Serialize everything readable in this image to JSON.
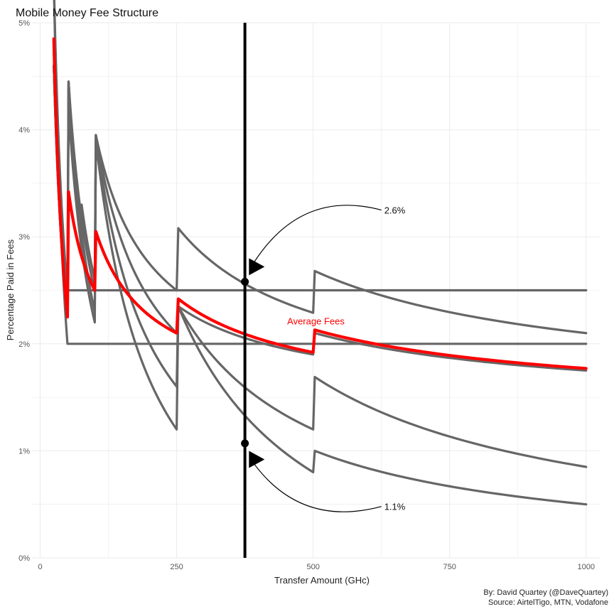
{
  "chart_data": {
    "type": "line",
    "title": "Mobile Money Fee Structure",
    "xlabel": "Transfer Amount (GHc)",
    "ylabel": "Percentage Paid in Fees",
    "xlim": [
      -15,
      1025
    ],
    "ylim": [
      0,
      5
    ],
    "x_ticks": [
      0,
      250,
      500,
      750,
      1000
    ],
    "x_tick_labels": [
      "0",
      "250",
      "500",
      "750",
      "1000"
    ],
    "y_ticks": [
      0,
      1,
      2,
      3,
      4,
      5
    ],
    "y_tick_labels": [
      "0%",
      "1%",
      "2%",
      "3%",
      "4%",
      "5%"
    ],
    "grid": true,
    "caption_lines": [
      "By: David Quartey (@DaveQuartey)",
      "Source: AirtelTigo, MTN, Vodafone"
    ],
    "colors": {
      "providers": "#666666",
      "average": "#ff0000",
      "reference": "#000000",
      "grid": "#ebebeb"
    },
    "series": [
      {
        "segments": [
          [
            [
              25,
              5.4
            ],
            [
              50,
              2.0
            ],
            [
              1000,
              2.0
            ]
          ]
        ]
      },
      {
        "segments": [
          [
            [
              25,
              5.4
            ],
            [
              50,
              2.5
            ],
            [
              1000,
              2.5
            ]
          ]
        ]
      },
      {
        "segments": [
          [
            [
              25,
              4.6
            ],
            [
              50,
              2.4
            ]
          ],
          [
            [
              52,
              4.45
            ],
            [
              100,
              2.3
            ]
          ],
          [
            [
              102,
              3.95
            ],
            [
              250,
              1.6
            ]
          ],
          [
            [
              253,
              2.35
            ],
            [
              500,
              0.8
            ]
          ],
          [
            [
              503,
              1.0
            ],
            [
              1000,
              0.5
            ]
          ]
        ]
      },
      {
        "segments": [
          [
            [
              25,
              4.6
            ],
            [
              50,
              2.3
            ]
          ],
          [
            [
              52,
              4.45
            ],
            [
              100,
              2.5
            ]
          ],
          [
            [
              102,
              3.95
            ],
            [
              250,
              2.5
            ]
          ],
          [
            [
              253,
              3.08
            ],
            [
              500,
              2.29
            ]
          ],
          [
            [
              503,
              2.68
            ],
            [
              1000,
              2.1
            ]
          ]
        ]
      },
      {
        "segments": [
          [
            [
              25,
              4.6
            ],
            [
              50,
              2.3
            ]
          ],
          [
            [
              52,
              4.2
            ],
            [
              100,
              2.2
            ]
          ],
          [
            [
              102,
              3.9
            ],
            [
              250,
              1.2
            ]
          ],
          [
            [
              253,
              2.35
            ],
            [
              500,
              1.2
            ]
          ],
          [
            [
              503,
              1.69
            ],
            [
              1000,
              0.85
            ]
          ]
        ]
      },
      {
        "segments": [
          [
            [
              25,
              4.6
            ],
            [
              50,
              2.5
            ]
          ],
          [
            [
              52,
              4.45
            ],
            [
              75,
              3.0
            ]
          ],
          [
            [
              76,
              3.3
            ],
            [
              100,
              2.6
            ]
          ],
          [
            [
              102,
              3.95
            ],
            [
              250,
              2.1
            ]
          ],
          [
            [
              253,
              2.35
            ],
            [
              500,
              1.9
            ]
          ],
          [
            [
              503,
              2.1
            ],
            [
              1000,
              1.75
            ]
          ]
        ]
      }
    ],
    "average": {
      "name": "Average Fees",
      "segments": [
        [
          [
            25,
            4.85
          ],
          [
            50,
            2.25
          ]
        ],
        [
          [
            52,
            3.42
          ],
          [
            100,
            2.5
          ]
        ],
        [
          [
            102,
            3.05
          ],
          [
            250,
            2.1
          ]
        ],
        [
          [
            253,
            2.42
          ],
          [
            500,
            1.92
          ]
        ],
        [
          [
            503,
            2.13
          ],
          [
            1000,
            1.77
          ]
        ]
      ]
    },
    "reference_line": {
      "x": 375
    },
    "points": [
      {
        "x": 375,
        "y": 2.58
      },
      {
        "x": 375,
        "y": 1.07
      }
    ],
    "callouts": [
      {
        "label": "2.6%",
        "text_x": 625,
        "text_y": 3.25,
        "arrow_tip_x": 385,
        "arrow_tip_y": 2.72
      },
      {
        "label": "1.1%",
        "text_x": 625,
        "text_y": 0.48,
        "arrow_tip_x": 385,
        "arrow_tip_y": 0.92
      }
    ],
    "average_label": {
      "text": "Average Fees",
      "x": 505,
      "y": 2.18
    }
  }
}
